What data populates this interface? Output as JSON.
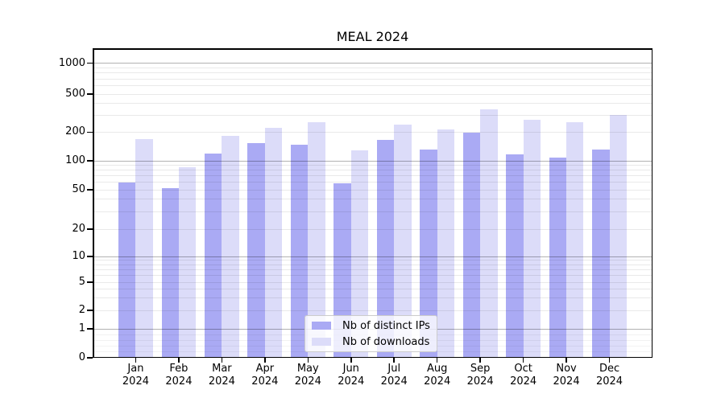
{
  "chart_data": {
    "type": "bar",
    "title": "MEAL 2024",
    "categories": [
      "Jan",
      "Feb",
      "Mar",
      "Apr",
      "May",
      "Jun",
      "Jul",
      "Aug",
      "Sep",
      "Oct",
      "Nov",
      "Dec"
    ],
    "category_year": "2024",
    "series": [
      {
        "name": "Nb of distinct IPs",
        "color": "#aaaaf4",
        "values": [
          60,
          52,
          120,
          152,
          148,
          58,
          165,
          130,
          197,
          116,
          108,
          130
        ]
      },
      {
        "name": "Nb of downloads",
        "color": "#dcdcf9",
        "values": [
          168,
          85,
          183,
          220,
          255,
          128,
          238,
          212,
          345,
          267,
          255,
          300
        ]
      }
    ],
    "xlabel": "",
    "ylabel": "",
    "yscale": "symlog",
    "yticks": [
      0,
      1,
      2,
      5,
      10,
      20,
      50,
      100,
      200,
      500,
      1000
    ],
    "ylim": [
      0,
      1440
    ],
    "grid": "horizontal major and minor",
    "legend_position": "lower center"
  }
}
